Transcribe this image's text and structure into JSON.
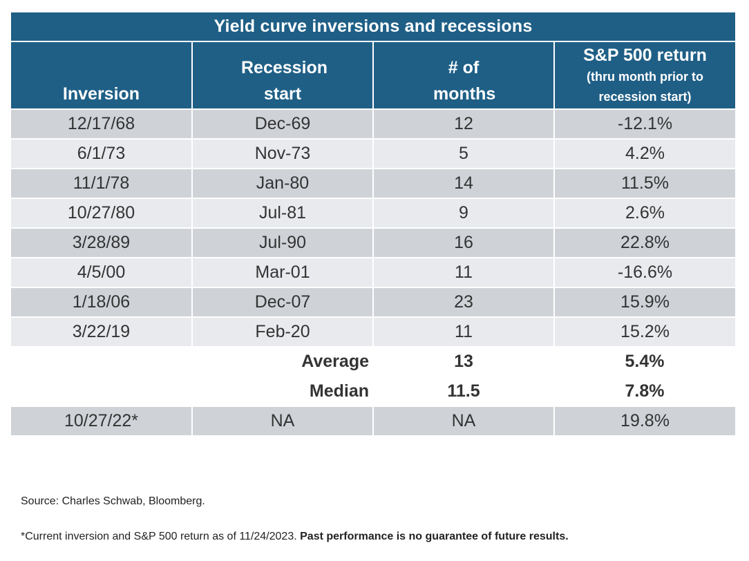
{
  "title": "Yield curve inversions and recessions",
  "headers": {
    "inversion": "Inversion",
    "recession_start": "Recession start",
    "months": "# of months",
    "sp500": "S&P 500 return",
    "sp500_note": "(thru month prior to recession start)"
  },
  "rows": [
    {
      "inversion": "12/17/68",
      "recession": "Dec-69",
      "months": "12",
      "ret": "-12.1%"
    },
    {
      "inversion": "6/1/73",
      "recession": "Nov-73",
      "months": "5",
      "ret": "4.2%"
    },
    {
      "inversion": "11/1/78",
      "recession": "Jan-80",
      "months": "14",
      "ret": "11.5%"
    },
    {
      "inversion": "10/27/80",
      "recession": "Jul-81",
      "months": "9",
      "ret": "2.6%"
    },
    {
      "inversion": "3/28/89",
      "recession": "Jul-90",
      "months": "16",
      "ret": "22.8%"
    },
    {
      "inversion": "4/5/00",
      "recession": "Mar-01",
      "months": "11",
      "ret": "-16.6%"
    },
    {
      "inversion": "1/18/06",
      "recession": "Dec-07",
      "months": "23",
      "ret": "15.9%"
    },
    {
      "inversion": "3/22/19",
      "recession": "Feb-20",
      "months": "11",
      "ret": "15.2%"
    }
  ],
  "summary": [
    {
      "label": "Average",
      "months": "13",
      "ret": "5.4%"
    },
    {
      "label": "Median",
      "months": "11.5",
      "ret": "7.8%"
    }
  ],
  "current": {
    "inversion": "10/27/22*",
    "recession": "NA",
    "months": "NA",
    "ret": "19.8%"
  },
  "source": "Source: Charles Schwab, Bloomberg.",
  "footnote": "*Current inversion and S&P 500 return as of 11/24/2023.",
  "footnote_bold": "Past performance is no guarantee of future results.",
  "colors": {
    "header_bg": "#1f5f86",
    "row_dark": "#cfd3d8",
    "row_light": "#e8eaed"
  }
}
